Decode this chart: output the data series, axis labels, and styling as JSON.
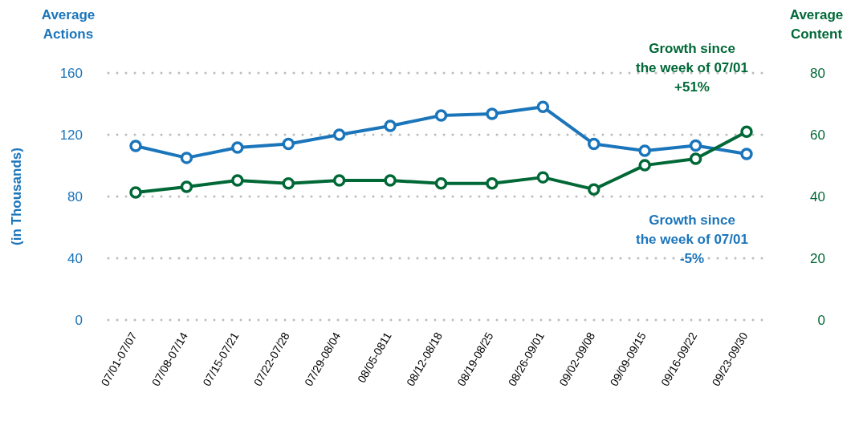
{
  "chart_data": {
    "type": "line",
    "ylabel": "Average Actions",
    "y2label": "Average Content",
    "categories": [
      "07/01-07/07",
      "07/08-07/14",
      "07/15-07/21",
      "07/22-07/28",
      "07/29-08/04",
      "08/05-0811",
      "08/12-08/18",
      "08/19-08/25",
      "08/26-09/01",
      "09/02-09/08",
      "09/09-09/15",
      "09/16-09/22",
      "09/23-09/30"
    ],
    "series": [
      {
        "color": "#1b75bb",
        "values": [
          112.7,
          105,
          111.7,
          114,
          120,
          125.7,
          132.5,
          133.5,
          138,
          114,
          109.6,
          113,
          107.5
        ]
      },
      {
        "color": "#006837",
        "axis": "y2",
        "values": [
          41.3,
          43.1,
          45.2,
          44.2,
          45.2,
          45.2,
          44.2,
          44.2,
          46.2,
          42.3,
          50.1,
          52.2,
          61
        ]
      }
    ],
    "ylim": [
      0,
      160
    ],
    "yticks": [
      0,
      40,
      80,
      120,
      160
    ],
    "y2lim": [
      0,
      80
    ],
    "y2ticks": [
      0,
      20,
      40,
      60,
      80
    ],
    "grid": "y",
    "marker": "circle",
    "line_style": "solid",
    "annotations": [
      "(in Thousands)",
      "Growth since\nthe week of 07/01\n-5%",
      "Growth since\nthe week of 07/01\n+51%"
    ]
  }
}
